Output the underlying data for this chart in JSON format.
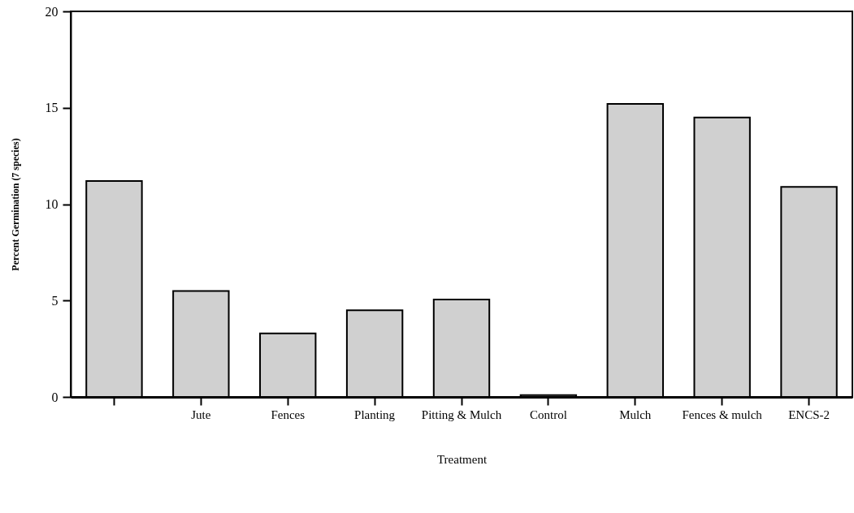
{
  "chart_data": {
    "type": "bar",
    "xlabel": "Treatment",
    "ylabel": "Percent Germination (7 species)",
    "categories": [
      null,
      "Jute",
      "Fences",
      "Planting",
      "Pitting & Mulch",
      "Control",
      "Mulch",
      "Fences & mulch",
      "ENCS-2"
    ],
    "values": [
      11.2,
      5.5,
      3.3,
      4.5,
      5.05,
      0.1,
      15.2,
      14.5,
      10.9
    ],
    "color": "#d0d0d0",
    "ylim": [
      0,
      20
    ],
    "yticks": [
      0,
      5,
      10,
      15,
      20
    ],
    "grid": false
  }
}
